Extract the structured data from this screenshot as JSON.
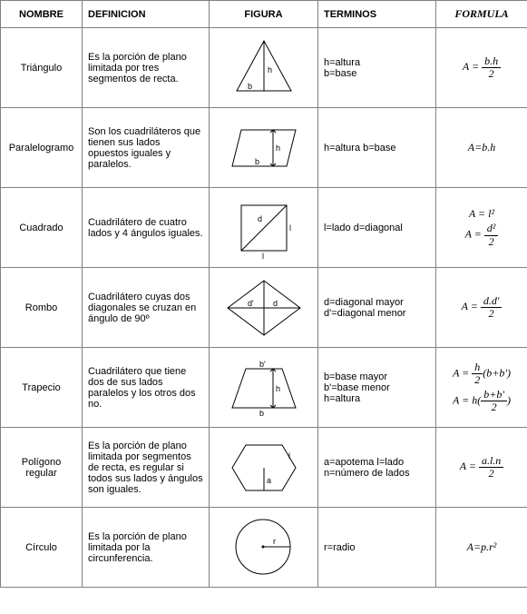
{
  "headers": {
    "nombre": "NOMBRE",
    "definicion": "DEFINICION",
    "figura": "FIGURA",
    "terminos": "TERMINOS",
    "formula": "FORMULA"
  },
  "rows": {
    "triangulo": {
      "nombre": "Triángulo",
      "definicion": "Es la porción de plano limitada por tres segmentos de recta.",
      "terminos": "h=altura\nb=base",
      "formula_prefix": "A = ",
      "formula_num": "b.h",
      "formula_den": "2"
    },
    "paralelogramo": {
      "nombre": "Paralelogramo",
      "definicion": "Son los cuadriláteros que tienen sus lados opuestos iguales y paralelos.",
      "terminos": "h=altura b=base",
      "formula": "A=b.h"
    },
    "cuadrado": {
      "nombre": "Cuadrado",
      "definicion": "Cuadrilátero de cuatro lados y 4 ángulos iguales.",
      "terminos": "l=lado d=diagonal",
      "formula1": "A = l²",
      "formula2_prefix": "A = ",
      "formula2_num": "d²",
      "formula2_den": "2"
    },
    "rombo": {
      "nombre": "Rombo",
      "definicion": "Cuadrilátero cuyas dos diagonales se cruzan en ángulo de 90º",
      "terminos": "d=diagonal mayor\nd'=diagonal menor",
      "formula_prefix": "A = ",
      "formula_num": "d.d'",
      "formula_den": "2"
    },
    "trapecio": {
      "nombre": "Trapecio",
      "definicion": "Cuadrilátero que tiene dos de sus lados paralelos y los otros dos no.",
      "terminos": "b=base mayor\nb'=base menor\nh=altura",
      "formula1_prefix": "A = ",
      "formula1_num": "h",
      "formula1_den": "2",
      "formula1_suffix": "(b+b')",
      "formula2_prefix": "A = h(",
      "formula2_num": "b+b'",
      "formula2_den": "2",
      "formula2_suffix": ")"
    },
    "poligono": {
      "nombre": "Polígono regular",
      "definicion": "Es la porción de plano limitada por segmentos de recta, es regular si todos sus lados y ángulos son iguales.",
      "terminos": "a=apotema l=lado\nn=número de lados",
      "formula_prefix": "A = ",
      "formula_num": "a.l.n",
      "formula_den": "2"
    },
    "circulo": {
      "nombre": "Círculo",
      "definicion": "Es la porción de plano limitada por la circunferencia.",
      "terminos": "r=radio",
      "formula": "A=p.r²"
    }
  },
  "figure_labels": {
    "b": "b",
    "h": "h",
    "l": "l",
    "d": "d",
    "dp": "d'",
    "bp": "b'",
    "a": "a",
    "r": "r"
  },
  "style": {
    "stroke": "#000000",
    "fill": "none",
    "stroke_width": 1,
    "font_size_label": 9
  }
}
